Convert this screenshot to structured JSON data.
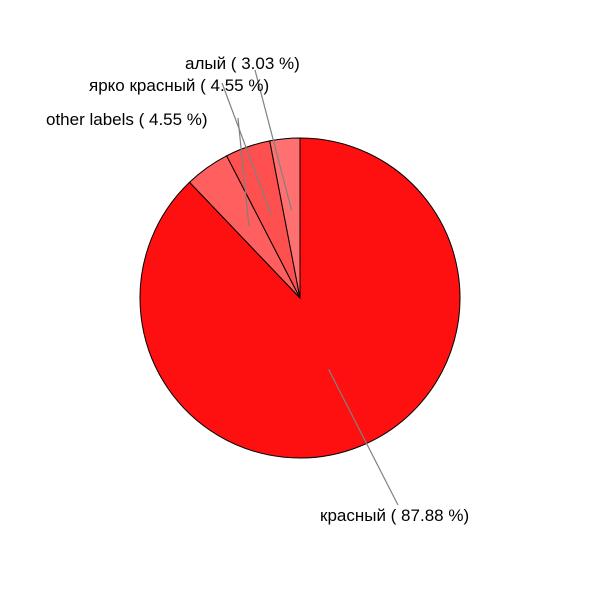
{
  "chart_data": {
    "type": "pie",
    "title": "",
    "slices": [
      {
        "label": "красный ( 87.88 %)",
        "value": 87.88,
        "color": "#ff1010"
      },
      {
        "label": "other labels ( 4.55 %)",
        "value": 4.55,
        "color": "#ff5f5f"
      },
      {
        "label": "ярко красный ( 4.55 %)",
        "value": 4.55,
        "color": "#ff5050"
      },
      {
        "label": "алый ( 3.03 %)",
        "value": 3.03,
        "color": "#ff7070"
      }
    ],
    "stroke_color": "#000000",
    "leader_color": "#808080"
  }
}
